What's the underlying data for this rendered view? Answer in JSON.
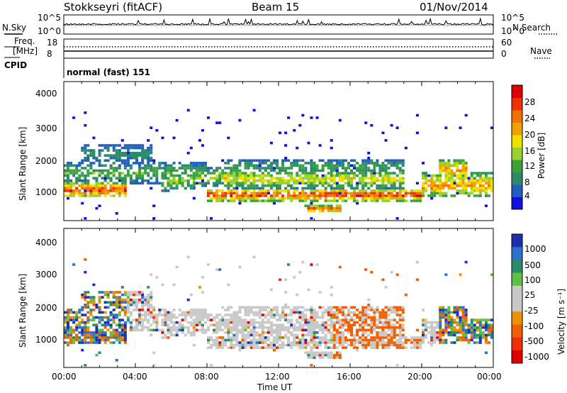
{
  "header": {
    "station": "Stokkseyri (fitACF)",
    "beam": "Beam 15",
    "date": "01/Nov/2014"
  },
  "noise_panel": {
    "left_label": "N.Sky",
    "right_label": "N.Search",
    "left_ticks": [
      "10^5",
      "10^0"
    ],
    "right_ticks": [
      "10^5",
      "10^0"
    ]
  },
  "freq_panel": {
    "left_label_line1": "Freq.",
    "left_label_line2": "[MHz]",
    "left_ticks": [
      "18",
      "8"
    ],
    "right_label": "Nave",
    "right_ticks": [
      "60",
      "0"
    ]
  },
  "cpid": {
    "label": "CPID",
    "value": "normal (fast) 151"
  },
  "colors": {
    "power_scale": [
      "#1010e0",
      "#1f5fbf",
      "#2a8a6a",
      "#3aa23a",
      "#9bd02a",
      "#f0e000",
      "#f0a000",
      "#f07000",
      "#f03000",
      "#e00000"
    ],
    "velocity_scale": [
      "#1f2fb0",
      "#2f6fcf",
      "#2a8a6a",
      "#5fc040",
      "#c8c8c8",
      "#c8c8c8",
      "#f09000",
      "#f06000",
      "#f03000",
      "#e00000"
    ]
  },
  "chart_data": [
    {
      "type": "heatmap",
      "panel": "power",
      "ylabel": "Slant Range [km]",
      "ylim": [
        180,
        4600
      ],
      "y_ticks": [
        "1000",
        "2000",
        "3000",
        "4000"
      ],
      "x_ticks": [
        "00:00",
        "04:00",
        "08:00",
        "12:00",
        "16:00",
        "20:00",
        "00:00"
      ],
      "colorbar_label": "Power [dB]",
      "colorbar_ticks": [
        "4",
        "8",
        "12",
        "16",
        "20",
        "24",
        "28"
      ],
      "zlim": [
        0,
        30
      ]
    },
    {
      "type": "heatmap",
      "panel": "velocity",
      "ylabel": "Slant Range [km]",
      "ylim": [
        180,
        4600
      ],
      "y_ticks": [
        "1000",
        "2000",
        "3000",
        "4000"
      ],
      "x_ticks": [
        "00:00",
        "04:00",
        "08:00",
        "12:00",
        "16:00",
        "20:00",
        "00:00"
      ],
      "xlabel": "Time UT",
      "colorbar_label": "Velocity [m s⁻¹]",
      "colorbar_ticks": [
        "1000",
        "500",
        "100",
        "25",
        "-25",
        "-100",
        "-500",
        "-1000"
      ],
      "zlim": [
        -1000,
        1000
      ]
    }
  ]
}
